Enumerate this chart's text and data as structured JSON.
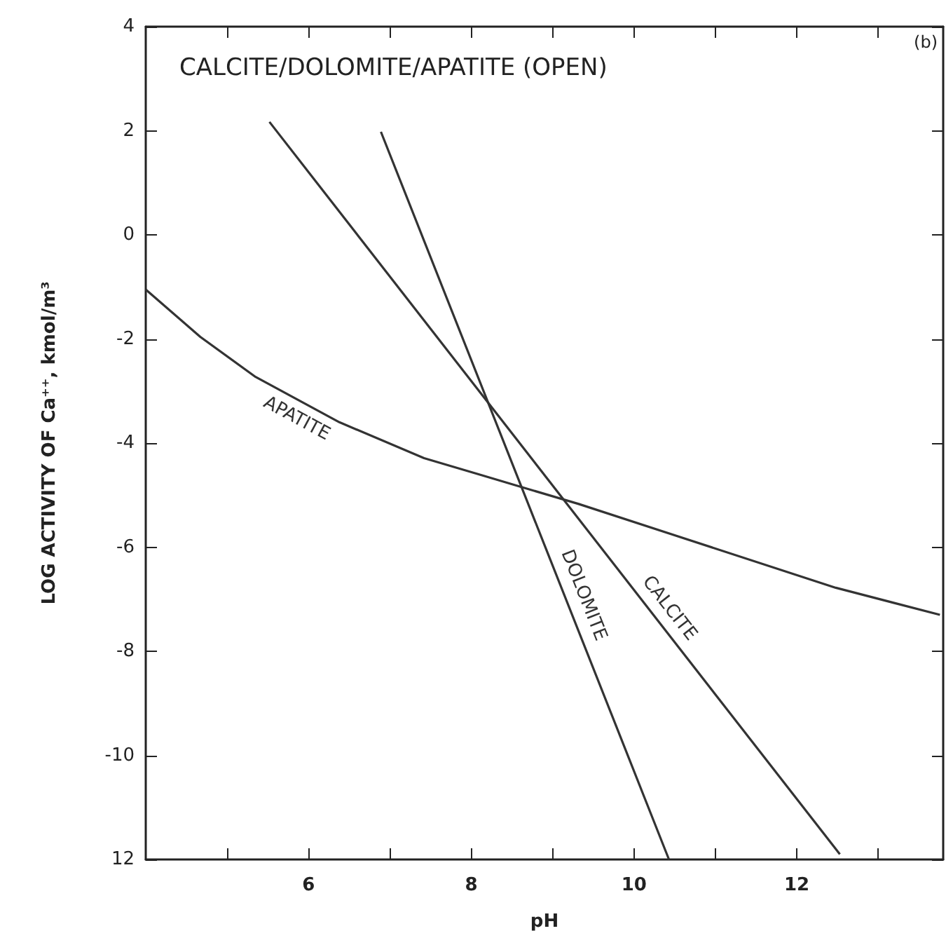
{
  "chart_data": {
    "type": "line",
    "title": "CALCITE/DOLOMITE/APATITE (OPEN)",
    "xlabel": "pH",
    "ylabel": "LOG ACTIVITY OF Ca⁺⁺, kmol/m³",
    "annotations": [
      "(b)"
    ],
    "xlim": [
      4,
      13.8
    ],
    "ylim": [
      -12,
      4
    ],
    "xticks": [
      {
        "value": 5,
        "label": null
      },
      6,
      {
        "value": 7,
        "label": null
      },
      8,
      {
        "value": 9,
        "label": null
      },
      10,
      {
        "value": 11,
        "label": null
      },
      12,
      {
        "value": 13,
        "label": null
      }
    ],
    "yticks": [
      {
        "value": -12,
        "label": "12"
      },
      -10,
      -8,
      -6,
      -4,
      -2,
      0,
      2,
      4
    ],
    "grid": false,
    "legend": false,
    "marker": "none",
    "line_style": "solid",
    "series": [
      {
        "name": "APATITE",
        "color": "#333333",
        "x": [
          4,
          4.67,
          5.35,
          6.38,
          7.42,
          8.09,
          9.32,
          12.48,
          13.76
        ],
        "values": [
          -1.05,
          -1.96,
          -2.73,
          -3.6,
          -4.29,
          -4.6,
          -5.17,
          -6.78,
          -7.3
        ]
      },
      {
        "name": "DOLOMITE",
        "color": "#333333",
        "x": [
          6.89,
          10.43
        ],
        "values": [
          1.98,
          -12
        ]
      },
      {
        "name": "CALCITE",
        "color": "#333333",
        "x": [
          5.52,
          12.53
        ],
        "values": [
          2.17,
          -11.9
        ]
      }
    ]
  }
}
